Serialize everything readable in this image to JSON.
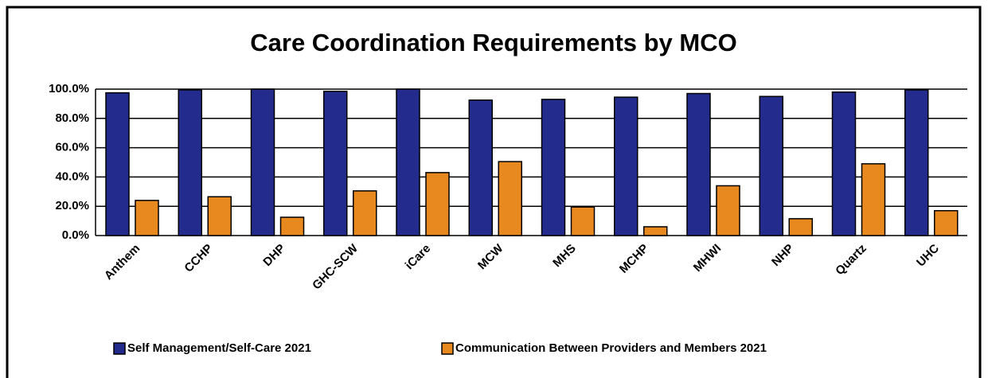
{
  "chart_data": {
    "type": "bar",
    "title": "Care Coordination Requirements by MCO",
    "categories": [
      "Anthem",
      "CCHP",
      "DHP",
      "GHC-SCW",
      "iCare",
      "MCW",
      "MHS",
      "MCHP",
      "MHWI",
      "NHP",
      "Quartz",
      "UHC"
    ],
    "series": [
      {
        "name": "Self Management/Self-Care 2021",
        "color": "#232b8c",
        "values": [
          97.5,
          99.5,
          100,
          98.5,
          100,
          92.5,
          93,
          94.5,
          97,
          95,
          98,
          99.5
        ]
      },
      {
        "name": "Communication Between Providers and Members 2021",
        "color": "#e8891f",
        "values": [
          24,
          26.5,
          12.5,
          30.5,
          43,
          50.5,
          19.5,
          6,
          34,
          11.5,
          49,
          17
        ]
      }
    ],
    "ylim": [
      0,
      100
    ],
    "yticks": [
      {
        "value": 0,
        "label": "0.0%"
      },
      {
        "value": 20,
        "label": "20.0%"
      },
      {
        "value": 40,
        "label": "40.0%"
      },
      {
        "value": 60,
        "label": "60.0%"
      },
      {
        "value": 80,
        "label": "80.0%"
      },
      {
        "value": 100,
        "label": "100.0%"
      }
    ],
    "grid": true,
    "legend": "bottom"
  }
}
